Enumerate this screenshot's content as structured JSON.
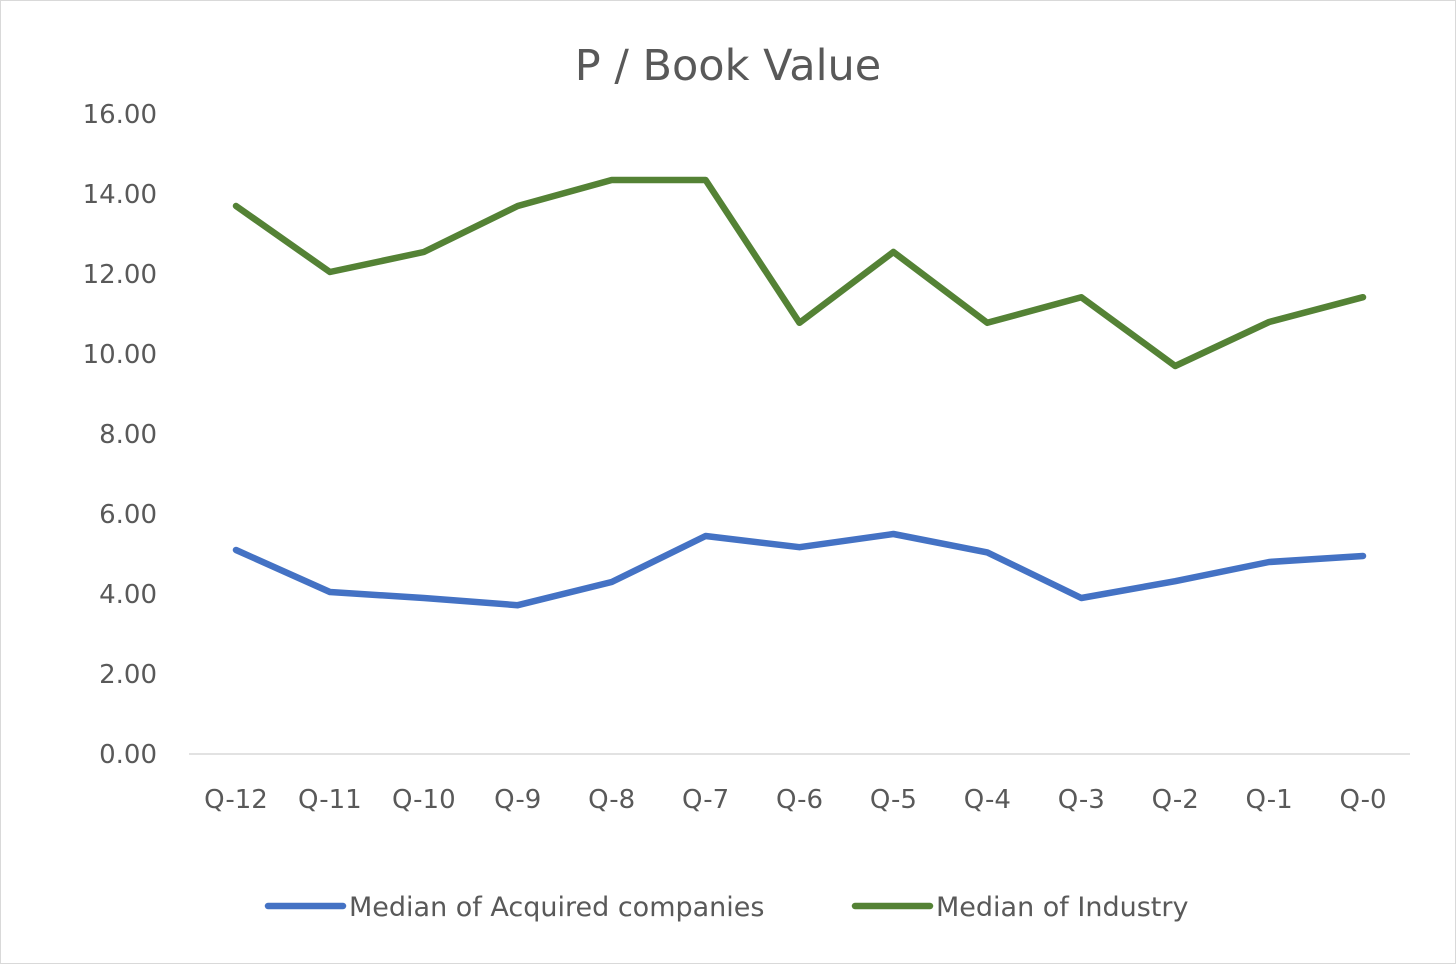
{
  "chart_data": {
    "type": "line",
    "title": "P / Book Value",
    "xlabel": "",
    "ylabel": "",
    "categories": [
      "Q-12",
      "Q-11",
      "Q-10",
      "Q-9",
      "Q-8",
      "Q-7",
      "Q-6",
      "Q-5",
      "Q-4",
      "Q-3",
      "Q-2",
      "Q-1",
      "Q-0"
    ],
    "ylim": [
      0,
      16
    ],
    "yticks": [
      "0.00",
      "2.00",
      "4.00",
      "6.00",
      "8.00",
      "10.00",
      "12.00",
      "14.00",
      "16.00"
    ],
    "grid": false,
    "legend_position": "bottom",
    "series": [
      {
        "name": "Median of Acquired companies",
        "color": "#4472c4",
        "values": [
          5.1,
          4.05,
          3.9,
          3.72,
          4.3,
          5.45,
          5.17,
          5.5,
          5.04,
          3.9,
          4.32,
          4.8,
          4.95
        ]
      },
      {
        "name": "Median of Industry",
        "color": "#548235",
        "values": [
          13.7,
          12.05,
          12.55,
          13.7,
          14.35,
          14.35,
          10.78,
          12.55,
          10.78,
          11.42,
          9.7,
          10.8,
          11.42
        ]
      }
    ]
  }
}
